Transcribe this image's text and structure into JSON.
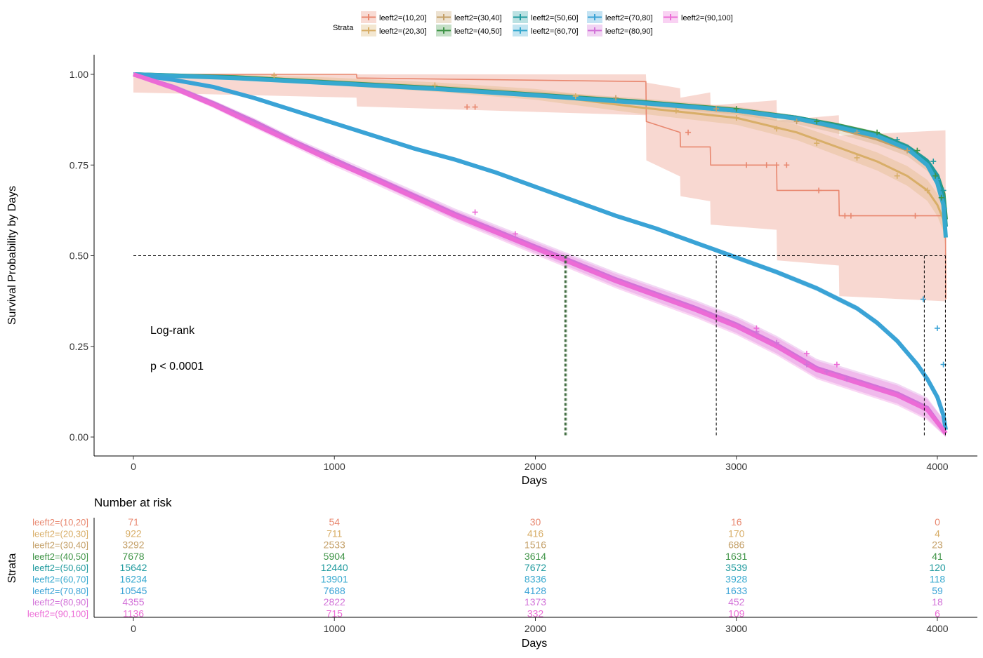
{
  "chart_data": [
    {
      "type": "line",
      "subtype": "kaplan-meier survival curve",
      "xlabel": "Days",
      "ylabel": "Survival Probability by Days",
      "xlim": [
        0,
        4050
      ],
      "ylim": [
        0,
        1
      ],
      "x_ticks": [
        0,
        1000,
        2000,
        3000,
        4000
      ],
      "y_ticks": [
        0.0,
        0.25,
        0.5,
        0.75,
        1.0
      ],
      "y_tick_labels": [
        "0.00",
        "0.25",
        "0.50",
        "0.75",
        "1.00"
      ],
      "grid": false,
      "legend": {
        "position": "top",
        "title": "Strata",
        "entries": [
          "leeft2=(10,20]",
          "leeft2=(20,30]",
          "leeft2=(30,40]",
          "leeft2=(40,50]",
          "leeft2=(50,60]",
          "leeft2=(60,70]",
          "leeft2=(70,80]",
          "leeft2=(80,90]",
          "leeft2=(90,100]"
        ]
      },
      "annotations": [
        "Log-rank",
        "p < 0.0001"
      ],
      "median_reference": {
        "y": 0.5,
        "x_values": [
          2145,
          2150,
          2155,
          2900,
          3935,
          4040
        ]
      },
      "series": [
        {
          "name": "leeft2=(10,20]",
          "color": "#E8876F",
          "band": 0.25,
          "markers": [
            [
              1660,
              0.91
            ],
            [
              1700,
              0.91
            ],
            [
              2760,
              0.84
            ],
            [
              3050,
              0.75
            ],
            [
              3150,
              0.75
            ],
            [
              3200,
              0.75
            ],
            [
              3250,
              0.75
            ],
            [
              3410,
              0.68
            ],
            [
              3540,
              0.61
            ],
            [
              3570,
              0.61
            ],
            [
              3890,
              0.61
            ]
          ],
          "x": [
            0,
            1110,
            1112,
            2550,
            2552,
            2720,
            2722,
            2870,
            2872,
            3200,
            3202,
            3510,
            3512,
            4040,
            4042
          ],
          "y": [
            1.0,
            1.0,
            0.99,
            0.98,
            0.87,
            0.84,
            0.8,
            0.8,
            0.75,
            0.75,
            0.68,
            0.68,
            0.61,
            0.61,
            0.38
          ]
        },
        {
          "name": "leeft2=(20,30]",
          "color": "#D8AE68",
          "band": 0.035,
          "markers": [
            [
              700,
              0.997
            ],
            [
              1500,
              0.97
            ],
            [
              2200,
              0.94
            ],
            [
              2700,
              0.9
            ],
            [
              3000,
              0.88
            ],
            [
              3200,
              0.85
            ],
            [
              3400,
              0.81
            ],
            [
              3600,
              0.77
            ],
            [
              3800,
              0.72
            ],
            [
              3950,
              0.68
            ]
          ],
          "x": [
            0,
            500,
            1000,
            1500,
            2000,
            2500,
            3000,
            3300,
            3500,
            3700,
            3850,
            3950,
            4000,
            4030,
            4042
          ],
          "y": [
            1.0,
            0.995,
            0.98,
            0.965,
            0.945,
            0.91,
            0.88,
            0.84,
            0.8,
            0.76,
            0.72,
            0.68,
            0.64,
            0.6,
            0.55
          ]
        },
        {
          "name": "leeft2=(30,40]",
          "color": "#C4A068",
          "band": 0.02,
          "markers": [
            [
              2400,
              0.935
            ],
            [
              2900,
              0.905
            ],
            [
              3300,
              0.87
            ],
            [
              3600,
              0.84
            ],
            [
              3850,
              0.79
            ]
          ],
          "x": [
            0,
            500,
            1000,
            1500,
            2000,
            2500,
            3000,
            3300,
            3500,
            3700,
            3850,
            3950,
            4000,
            4030,
            4042
          ],
          "y": [
            1.0,
            0.993,
            0.978,
            0.963,
            0.945,
            0.925,
            0.9,
            0.875,
            0.85,
            0.82,
            0.79,
            0.75,
            0.71,
            0.66,
            0.6
          ]
        },
        {
          "name": "leeft2=(40,50]",
          "color": "#3F9447",
          "band": 0.01,
          "markers": [
            [
              3000,
              0.905
            ],
            [
              3400,
              0.87
            ],
            [
              3700,
              0.84
            ],
            [
              3900,
              0.79
            ],
            [
              3990,
              0.72
            ],
            [
              4020,
              0.66
            ]
          ],
          "x": [
            0,
            500,
            1000,
            1500,
            2000,
            2500,
            3000,
            3300,
            3500,
            3700,
            3850,
            3950,
            4000,
            4030,
            4042
          ],
          "y": [
            1.0,
            0.992,
            0.977,
            0.962,
            0.944,
            0.925,
            0.902,
            0.88,
            0.86,
            0.835,
            0.8,
            0.76,
            0.72,
            0.67,
            0.6
          ]
        },
        {
          "name": "leeft2=(50,60]",
          "color": "#1F9A9E",
          "band": 0.01,
          "markers": [
            [
              3800,
              0.82
            ],
            [
              3980,
              0.76
            ],
            [
              4030,
              0.68
            ]
          ],
          "x": [
            0,
            500,
            1000,
            1500,
            2000,
            2500,
            3000,
            3300,
            3500,
            3700,
            3850,
            3950,
            4000,
            4030,
            4042
          ],
          "y": [
            1.0,
            0.991,
            0.976,
            0.961,
            0.943,
            0.924,
            0.9,
            0.88,
            0.858,
            0.832,
            0.8,
            0.76,
            0.72,
            0.66,
            0.58
          ]
        },
        {
          "name": "leeft2=(60,70]",
          "color": "#37A9CF",
          "band": 0.01,
          "markers": [
            [
              4000,
              0.71
            ],
            [
              4035,
              0.63
            ]
          ],
          "x": [
            0,
            500,
            1000,
            1500,
            2000,
            2500,
            3000,
            3300,
            3500,
            3700,
            3850,
            3950,
            4000,
            4030,
            4042
          ],
          "y": [
            1.0,
            0.99,
            0.975,
            0.96,
            0.942,
            0.922,
            0.9,
            0.878,
            0.855,
            0.83,
            0.795,
            0.75,
            0.7,
            0.64,
            0.55
          ]
        },
        {
          "name": "leeft2=(70,80]",
          "color": "#3AA3D6",
          "band": 0.01,
          "markers": [
            [
              3930,
              0.38
            ],
            [
              4000,
              0.3
            ],
            [
              4030,
              0.2
            ]
          ],
          "x": [
            0,
            200,
            400,
            600,
            800,
            1000,
            1200,
            1400,
            1600,
            1800,
            2000,
            2200,
            2400,
            2600,
            2800,
            3000,
            3200,
            3400,
            3600,
            3700,
            3800,
            3900,
            3950,
            4000,
            4030,
            4042
          ],
          "y": [
            1.0,
            0.985,
            0.965,
            0.935,
            0.9,
            0.865,
            0.83,
            0.795,
            0.765,
            0.73,
            0.69,
            0.65,
            0.61,
            0.575,
            0.535,
            0.495,
            0.455,
            0.41,
            0.355,
            0.315,
            0.265,
            0.2,
            0.16,
            0.11,
            0.06,
            0.02
          ]
        },
        {
          "name": "leeft2=(80,90]",
          "color": "#D272D8",
          "band": 0.03,
          "markers": [
            [
              3100,
              0.29
            ],
            [
              3200,
              0.26
            ],
            [
              3350,
              0.2
            ],
            [
              3450,
              0.18
            ],
            [
              3550,
              0.16
            ]
          ],
          "x": [
            0,
            200,
            400,
            600,
            800,
            1000,
            1200,
            1400,
            1600,
            1800,
            2000,
            2200,
            2400,
            2600,
            2800,
            3000,
            3200,
            3400,
            3600,
            3800,
            3950,
            4042
          ],
          "y": [
            1.0,
            0.965,
            0.92,
            0.87,
            0.815,
            0.765,
            0.715,
            0.665,
            0.615,
            0.57,
            0.525,
            0.48,
            0.435,
            0.395,
            0.355,
            0.31,
            0.255,
            0.19,
            0.155,
            0.12,
            0.08,
            0.01
          ]
        },
        {
          "name": "leeft2=(90,100]",
          "color": "#EC6BD6",
          "band": 0.03,
          "markers": [
            [
              1700,
              0.62
            ],
            [
              1900,
              0.56
            ],
            [
              3100,
              0.3
            ],
            [
              3350,
              0.23
            ],
            [
              3500,
              0.2
            ]
          ],
          "x": [
            0,
            200,
            400,
            600,
            800,
            1000,
            1200,
            1400,
            1600,
            1800,
            2000,
            2200,
            2400,
            2600,
            2800,
            3000,
            3200,
            3400,
            3600,
            3800,
            3950,
            4042
          ],
          "y": [
            1.0,
            0.962,
            0.915,
            0.862,
            0.81,
            0.758,
            0.71,
            0.66,
            0.61,
            0.565,
            0.52,
            0.475,
            0.43,
            0.39,
            0.35,
            0.305,
            0.25,
            0.185,
            0.15,
            0.115,
            0.075,
            0.01
          ]
        }
      ]
    },
    {
      "type": "table",
      "title": "Number at risk",
      "xlabel": "Days",
      "ylabel": "Strata",
      "x": [
        0,
        1000,
        2000,
        3000,
        4000
      ],
      "rows": [
        {
          "name": "leeft2=(10,20]",
          "color": "#E8876F",
          "values": [
            71,
            54,
            30,
            16,
            0
          ]
        },
        {
          "name": "leeft2=(20,30]",
          "color": "#D8AE68",
          "values": [
            922,
            711,
            416,
            170,
            4
          ]
        },
        {
          "name": "leeft2=(30,40]",
          "color": "#C4A068",
          "values": [
            3292,
            2533,
            1516,
            686,
            23
          ]
        },
        {
          "name": "leeft2=(40,50]",
          "color": "#3F9447",
          "values": [
            7678,
            5904,
            3614,
            1631,
            41
          ]
        },
        {
          "name": "leeft2=(50,60]",
          "color": "#1F9A9E",
          "values": [
            15642,
            12440,
            7672,
            3539,
            120
          ]
        },
        {
          "name": "leeft2=(60,70]",
          "color": "#37A9CF",
          "values": [
            16234,
            13901,
            8336,
            3928,
            118
          ]
        },
        {
          "name": "leeft2=(70,80]",
          "color": "#3AA3D6",
          "values": [
            10545,
            7688,
            4128,
            1633,
            59
          ]
        },
        {
          "name": "leeft2=(80,90]",
          "color": "#D272D8",
          "values": [
            4355,
            2822,
            1373,
            452,
            18
          ]
        },
        {
          "name": "leeft2=(90,100]",
          "color": "#EC6BD6",
          "values": [
            1136,
            715,
            332,
            109,
            6
          ]
        }
      ]
    }
  ]
}
